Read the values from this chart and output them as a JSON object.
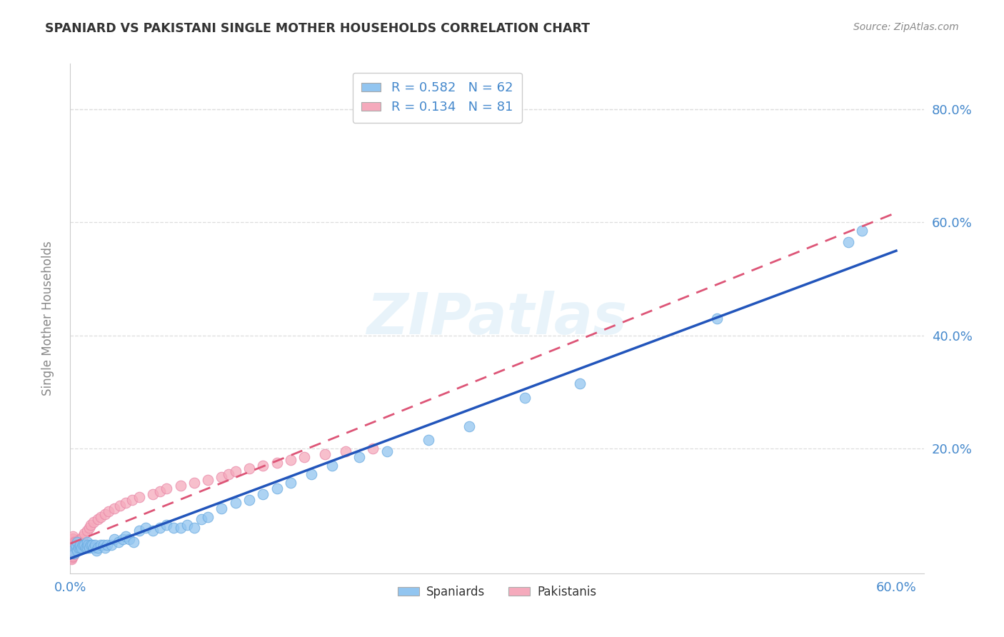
{
  "title": "SPANIARD VS PAKISTANI SINGLE MOTHER HOUSEHOLDS CORRELATION CHART",
  "source": "Source: ZipAtlas.com",
  "ylabel": "Single Mother Households",
  "xlim": [
    0.0,
    0.62
  ],
  "ylim": [
    -0.02,
    0.88
  ],
  "spaniard_color": "#92C5F0",
  "pakistani_color": "#F5AABC",
  "spaniard_edge_color": "#6AAAE0",
  "pakistani_edge_color": "#E888A8",
  "spaniard_line_color": "#2255BB",
  "pakistani_line_color": "#DD5577",
  "legend_R_spaniard": "0.582",
  "legend_N_spaniard": "62",
  "legend_R_pakistani": "0.134",
  "legend_N_pakistani": "81",
  "watermark": "ZIPatlas",
  "background_color": "#ffffff",
  "spaniard_x": [
    0.002,
    0.003,
    0.004,
    0.004,
    0.005,
    0.005,
    0.006,
    0.007,
    0.007,
    0.008,
    0.009,
    0.01,
    0.011,
    0.012,
    0.012,
    0.013,
    0.014,
    0.015,
    0.016,
    0.017,
    0.018,
    0.019,
    0.02,
    0.022,
    0.024,
    0.025,
    0.027,
    0.03,
    0.032,
    0.035,
    0.038,
    0.04,
    0.043,
    0.046,
    0.05,
    0.055,
    0.06,
    0.065,
    0.07,
    0.075,
    0.08,
    0.085,
    0.09,
    0.095,
    0.1,
    0.11,
    0.12,
    0.13,
    0.14,
    0.15,
    0.16,
    0.175,
    0.19,
    0.21,
    0.23,
    0.26,
    0.29,
    0.33,
    0.37,
    0.47,
    0.565,
    0.575
  ],
  "spaniard_y": [
    0.02,
    0.015,
    0.025,
    0.03,
    0.02,
    0.035,
    0.025,
    0.025,
    0.03,
    0.025,
    0.03,
    0.03,
    0.025,
    0.035,
    0.025,
    0.03,
    0.025,
    0.03,
    0.03,
    0.025,
    0.03,
    0.02,
    0.025,
    0.03,
    0.03,
    0.025,
    0.03,
    0.03,
    0.04,
    0.035,
    0.04,
    0.045,
    0.04,
    0.035,
    0.055,
    0.06,
    0.055,
    0.06,
    0.065,
    0.06,
    0.06,
    0.065,
    0.06,
    0.075,
    0.08,
    0.095,
    0.105,
    0.11,
    0.12,
    0.13,
    0.14,
    0.155,
    0.17,
    0.185,
    0.195,
    0.215,
    0.24,
    0.29,
    0.315,
    0.43,
    0.565,
    0.585
  ],
  "pakistani_x": [
    0.001,
    0.001,
    0.001,
    0.001,
    0.001,
    0.001,
    0.001,
    0.001,
    0.001,
    0.001,
    0.001,
    0.001,
    0.001,
    0.001,
    0.001,
    0.002,
    0.002,
    0.002,
    0.002,
    0.002,
    0.002,
    0.002,
    0.002,
    0.002,
    0.002,
    0.002,
    0.002,
    0.002,
    0.002,
    0.003,
    0.003,
    0.003,
    0.003,
    0.003,
    0.003,
    0.003,
    0.003,
    0.004,
    0.004,
    0.004,
    0.004,
    0.005,
    0.005,
    0.005,
    0.006,
    0.006,
    0.007,
    0.007,
    0.008,
    0.009,
    0.01,
    0.012,
    0.014,
    0.015,
    0.017,
    0.02,
    0.022,
    0.025,
    0.028,
    0.032,
    0.036,
    0.04,
    0.045,
    0.05,
    0.06,
    0.065,
    0.07,
    0.08,
    0.09,
    0.1,
    0.11,
    0.115,
    0.12,
    0.13,
    0.14,
    0.15,
    0.16,
    0.17,
    0.185,
    0.2,
    0.22
  ],
  "pakistani_y": [
    0.005,
    0.008,
    0.01,
    0.012,
    0.015,
    0.017,
    0.02,
    0.022,
    0.025,
    0.028,
    0.03,
    0.032,
    0.035,
    0.038,
    0.04,
    0.01,
    0.015,
    0.018,
    0.02,
    0.022,
    0.025,
    0.028,
    0.03,
    0.033,
    0.035,
    0.038,
    0.04,
    0.042,
    0.045,
    0.015,
    0.018,
    0.02,
    0.022,
    0.025,
    0.028,
    0.03,
    0.035,
    0.02,
    0.025,
    0.03,
    0.035,
    0.025,
    0.03,
    0.035,
    0.03,
    0.035,
    0.035,
    0.04,
    0.04,
    0.045,
    0.05,
    0.055,
    0.06,
    0.065,
    0.07,
    0.075,
    0.08,
    0.085,
    0.09,
    0.095,
    0.1,
    0.105,
    0.11,
    0.115,
    0.12,
    0.125,
    0.13,
    0.135,
    0.14,
    0.145,
    0.15,
    0.155,
    0.16,
    0.165,
    0.17,
    0.175,
    0.18,
    0.185,
    0.19,
    0.195,
    0.2
  ],
  "grid_color": "#dddddd",
  "tick_color": "#4488CC",
  "ylabel_color": "#888888",
  "title_color": "#333333",
  "source_color": "#888888"
}
